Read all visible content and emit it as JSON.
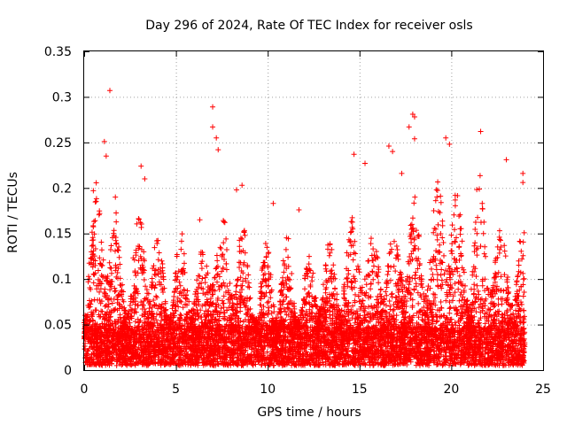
{
  "chart_data": {
    "type": "scatter",
    "title": "Day 296 of 2024, Rate Of TEC Index for receiver osls",
    "xlabel": "GPS time / hours",
    "ylabel": "ROTI / TECUs",
    "xlim": [
      0,
      25
    ],
    "ylim": [
      0,
      0.35
    ],
    "x_ticks": [
      0,
      5,
      10,
      15,
      20,
      25
    ],
    "x_tick_labels": [
      "0",
      "5",
      "10",
      "15",
      "20",
      "25"
    ],
    "y_ticks": [
      0,
      0.05,
      0.1,
      0.15,
      0.2,
      0.25,
      0.3,
      0.35
    ],
    "y_tick_labels": [
      "0",
      "0.05",
      "0.1",
      "0.15",
      "0.2",
      "0.25",
      "0.3",
      "0.35"
    ],
    "grid": true,
    "marker": "+",
    "color": "#ff0000",
    "data_range": [
      0,
      24
    ],
    "points_per_hour": 330,
    "background_band": [
      0.005,
      0.045
    ],
    "activity_envelope": [
      {
        "x": 0.0,
        "y": 0.13
      },
      {
        "x": 0.5,
        "y": 0.2
      },
      {
        "x": 1.0,
        "y": 0.25
      },
      {
        "x": 1.5,
        "y": 0.19
      },
      {
        "x": 2.0,
        "y": 0.16
      },
      {
        "x": 2.5,
        "y": 0.13
      },
      {
        "x": 3.0,
        "y": 0.22
      },
      {
        "x": 3.5,
        "y": 0.19
      },
      {
        "x": 4.0,
        "y": 0.16
      },
      {
        "x": 4.5,
        "y": 0.12
      },
      {
        "x": 5.0,
        "y": 0.15
      },
      {
        "x": 5.5,
        "y": 0.16
      },
      {
        "x": 6.0,
        "y": 0.14
      },
      {
        "x": 6.5,
        "y": 0.13
      },
      {
        "x": 7.0,
        "y": 0.21
      },
      {
        "x": 7.5,
        "y": 0.17
      },
      {
        "x": 8.0,
        "y": 0.17
      },
      {
        "x": 8.5,
        "y": 0.19
      },
      {
        "x": 9.0,
        "y": 0.12
      },
      {
        "x": 9.5,
        "y": 0.12
      },
      {
        "x": 10.0,
        "y": 0.15
      },
      {
        "x": 10.5,
        "y": 0.13
      },
      {
        "x": 11.0,
        "y": 0.16
      },
      {
        "x": 11.5,
        "y": 0.12
      },
      {
        "x": 12.0,
        "y": 0.12
      },
      {
        "x": 12.5,
        "y": 0.14
      },
      {
        "x": 13.0,
        "y": 0.15
      },
      {
        "x": 13.5,
        "y": 0.14
      },
      {
        "x": 14.0,
        "y": 0.15
      },
      {
        "x": 14.5,
        "y": 0.19
      },
      {
        "x": 15.0,
        "y": 0.22
      },
      {
        "x": 15.5,
        "y": 0.16
      },
      {
        "x": 16.0,
        "y": 0.17
      },
      {
        "x": 16.5,
        "y": 0.18
      },
      {
        "x": 17.0,
        "y": 0.15
      },
      {
        "x": 17.5,
        "y": 0.22
      },
      {
        "x": 18.0,
        "y": 0.2
      },
      {
        "x": 18.5,
        "y": 0.18
      },
      {
        "x": 19.0,
        "y": 0.2
      },
      {
        "x": 19.5,
        "y": 0.24
      },
      {
        "x": 20.0,
        "y": 0.24
      },
      {
        "x": 20.5,
        "y": 0.18
      },
      {
        "x": 21.0,
        "y": 0.16
      },
      {
        "x": 21.5,
        "y": 0.23
      },
      {
        "x": 22.0,
        "y": 0.2
      },
      {
        "x": 22.5,
        "y": 0.16
      },
      {
        "x": 23.0,
        "y": 0.18
      },
      {
        "x": 23.5,
        "y": 0.15
      },
      {
        "x": 24.0,
        "y": 0.16
      }
    ],
    "outliers": [
      {
        "x": 0.5,
        "y": 0.197
      },
      {
        "x": 1.1,
        "y": 0.251
      },
      {
        "x": 1.2,
        "y": 0.235
      },
      {
        "x": 1.4,
        "y": 0.307
      },
      {
        "x": 1.7,
        "y": 0.19
      },
      {
        "x": 3.1,
        "y": 0.224
      },
      {
        "x": 3.3,
        "y": 0.21
      },
      {
        "x": 6.3,
        "y": 0.165
      },
      {
        "x": 7.0,
        "y": 0.289
      },
      {
        "x": 7.0,
        "y": 0.267
      },
      {
        "x": 7.2,
        "y": 0.255
      },
      {
        "x": 7.3,
        "y": 0.242
      },
      {
        "x": 8.6,
        "y": 0.203
      },
      {
        "x": 8.3,
        "y": 0.198
      },
      {
        "x": 10.3,
        "y": 0.183
      },
      {
        "x": 11.7,
        "y": 0.176
      },
      {
        "x": 14.7,
        "y": 0.237
      },
      {
        "x": 15.3,
        "y": 0.227
      },
      {
        "x": 16.6,
        "y": 0.246
      },
      {
        "x": 16.8,
        "y": 0.24
      },
      {
        "x": 17.3,
        "y": 0.216
      },
      {
        "x": 17.7,
        "y": 0.267
      },
      {
        "x": 17.9,
        "y": 0.281
      },
      {
        "x": 18.0,
        "y": 0.278
      },
      {
        "x": 18.0,
        "y": 0.254
      },
      {
        "x": 19.7,
        "y": 0.255
      },
      {
        "x": 19.9,
        "y": 0.248
      },
      {
        "x": 21.6,
        "y": 0.262
      },
      {
        "x": 23.0,
        "y": 0.231
      },
      {
        "x": 23.9,
        "y": 0.216
      },
      {
        "x": 23.9,
        "y": 0.206
      }
    ]
  }
}
